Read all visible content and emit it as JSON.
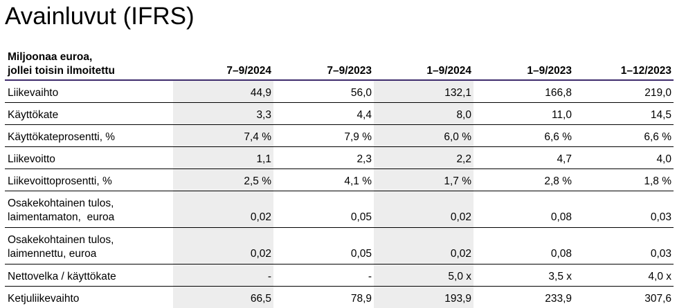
{
  "title": "Avainluvut (IFRS)",
  "table": {
    "header_label_line1": "Miljoonaa euroa,",
    "header_label_line2": "jollei toisin ilmoitettu",
    "columns": [
      "7–9/2024",
      "7–9/2023",
      "1–9/2024",
      "1–9/2023",
      "1–12/2023"
    ],
    "rows": [
      {
        "label1": "Liikevaihto",
        "label2": "",
        "values": [
          "44,9",
          "56,0",
          "132,1",
          "166,8",
          "219,0"
        ]
      },
      {
        "label1": "Käyttökate",
        "label2": "",
        "values": [
          "3,3",
          "4,4",
          "8,0",
          "11,0",
          "14,5"
        ]
      },
      {
        "label1": "Käyttökateprosentti, %",
        "label2": "",
        "values": [
          "7,4 %",
          "7,9 %",
          "6,0 %",
          "6,6 %",
          "6,6 %"
        ]
      },
      {
        "label1": "Liikevoitto",
        "label2": "",
        "values": [
          "1,1",
          "2,3",
          "2,2",
          "4,7",
          "4,0"
        ]
      },
      {
        "label1": "Liikevoittoprosentti, %",
        "label2": "",
        "values": [
          "2,5 %",
          "4,1 %",
          "1,7 %",
          "2,8 %",
          "1,8 %"
        ]
      },
      {
        "label1": "Osakekohtainen tulos,",
        "label2": "laimentamaton,  euroa",
        "values": [
          "0,02",
          "0,05",
          "0,02",
          "0,08",
          "0,03"
        ]
      },
      {
        "label1": "Osakekohtainen tulos,",
        "label2": "laimennettu, euroa",
        "values": [
          "0,02",
          "0,05",
          "0,02",
          "0,08",
          "0,03"
        ]
      },
      {
        "label1": "Nettovelka / käyttökate",
        "label2": "",
        "values": [
          "-",
          "-",
          "5,0 x",
          "3,5 x",
          "4,0 x"
        ]
      },
      {
        "label1": "Ketjuliikevaihto",
        "label2": "",
        "values": [
          "66,5",
          "78,9",
          "193,9",
          "233,9",
          "307,6"
        ]
      }
    ]
  },
  "colors": {
    "header_rule": "#3c2a6b",
    "row_rule": "#000000",
    "shaded_column": "#ededed"
  }
}
